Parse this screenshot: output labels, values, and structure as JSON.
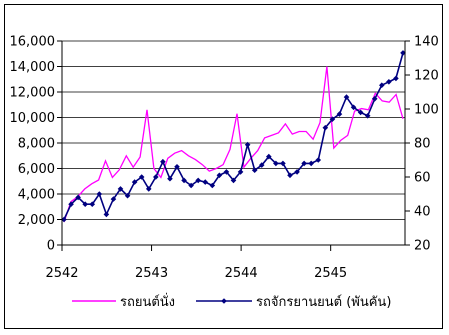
{
  "chart_data": {
    "type": "line",
    "title": "",
    "xlabel": "",
    "ylabel_left": "",
    "ylabel_right": "",
    "x_ticks": [
      "2542",
      "2543",
      "2544",
      "2545"
    ],
    "x_range": [
      2542,
      2545.83
    ],
    "y_left": {
      "min": 0,
      "max": 16000,
      "step": 2000,
      "labels": [
        "0",
        "2,000",
        "4,000",
        "6,000",
        "8,000",
        "10,000",
        "12,000",
        "14,000",
        "16,000"
      ]
    },
    "y_right": {
      "min": 20,
      "max": 140,
      "step": 20,
      "labels": [
        "20",
        "40",
        "60",
        "80",
        "100",
        "120",
        "140"
      ]
    },
    "grid": "horizontal",
    "legend_position": "bottom",
    "series": [
      {
        "name": "รถยนต์นั่ง",
        "color": "#ff00ff",
        "axis": "left",
        "marker": "none",
        "values": [
          1800,
          3400,
          3800,
          4400,
          4800,
          5100,
          6600,
          5300,
          5900,
          7000,
          6100,
          6900,
          10600,
          6000,
          5300,
          6800,
          7200,
          7400,
          7000,
          6700,
          6300,
          5800,
          6000,
          6300,
          7500,
          10300,
          6100,
          6800,
          7400,
          8400,
          8600,
          8800,
          9500,
          8700,
          8900,
          8900,
          8300,
          9600,
          14000,
          7600,
          8200,
          8600,
          10500,
          10700,
          10600,
          11900,
          11300,
          11200,
          11800,
          9900
        ]
      },
      {
        "name": "รถจักรยานยนต์ (พันคัน)",
        "color": "#000080",
        "axis": "right",
        "marker": "diamond",
        "values": [
          35,
          44,
          48,
          44,
          44,
          50,
          38,
          47,
          53,
          49,
          57,
          60,
          53,
          60,
          69,
          59,
          66,
          58,
          55,
          58,
          57,
          55,
          61,
          63,
          58,
          63,
          79,
          64,
          67,
          72,
          68,
          68,
          61,
          63,
          68,
          68,
          70,
          89,
          94,
          97,
          107,
          101,
          98,
          96,
          106,
          114,
          116,
          118,
          133
        ]
      }
    ]
  }
}
